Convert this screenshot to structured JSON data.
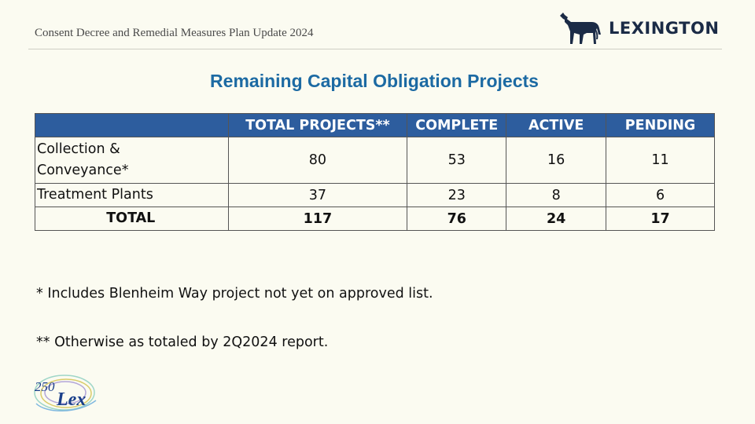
{
  "header": {
    "title": "Consent Decree and Remedial Measures Plan Update 2024",
    "logo_text": "LEXINGTON",
    "logo_icon": "horse-icon"
  },
  "slide_title": "Remaining Capital Obligation Projects",
  "table": {
    "columns": [
      "",
      "TOTAL PROJECTS**",
      "COMPLETE",
      "ACTIVE",
      "PENDING"
    ],
    "rows": [
      {
        "label_line1": "Collection &",
        "label_line2": "Conveyance*",
        "total": "80",
        "complete": "53",
        "active": "16",
        "pending": "11"
      },
      {
        "label": "Treatment Plants",
        "total": "37",
        "complete": "23",
        "active": "8",
        "pending": "6"
      }
    ],
    "total_row": {
      "label": "TOTAL",
      "total": "117",
      "complete": "76",
      "active": "24",
      "pending": "17"
    }
  },
  "notes": [
    "* Includes Blenheim Way project not yet on approved list.",
    "** Otherwise as totaled by 2Q2024 report."
  ],
  "badge": {
    "number": "250",
    "text": "Lex"
  },
  "colors": {
    "background": "#fbfbf1",
    "header_fill": "#2d5d9e",
    "title": "#1c6aa3",
    "logo": "#1b2b46"
  }
}
